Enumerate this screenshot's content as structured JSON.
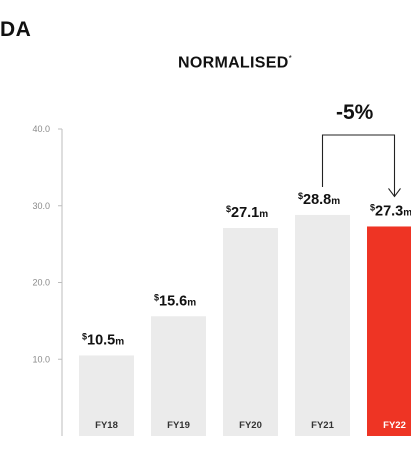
{
  "header": {
    "title_fragment": "DA",
    "subtitle": "NORMALISED",
    "subtitle_mark": "*"
  },
  "annotation": {
    "change_label": "-5%"
  },
  "colors": {
    "bar": "#ebebeb",
    "highlight": "#ee3424",
    "axis": "#bdbdbd",
    "tick_text": "#8a8a8a",
    "text": "#111111"
  },
  "chart_data": {
    "type": "bar",
    "title": "NORMALISED*",
    "xlabel": "",
    "ylabel": "",
    "ylim": [
      0,
      40
    ],
    "yticks": [
      "10.0",
      "20.0",
      "30.0",
      "40.0"
    ],
    "categories": [
      "FY18",
      "FY19",
      "FY20",
      "FY21",
      "FY22"
    ],
    "values": [
      10.5,
      15.6,
      27.1,
      28.8,
      27.3
    ],
    "value_labels": [
      {
        "prefix": "$",
        "number": "10.5",
        "suffix": "m"
      },
      {
        "prefix": "$",
        "number": "15.6",
        "suffix": "m"
      },
      {
        "prefix": "$",
        "number": "27.1",
        "suffix": "m"
      },
      {
        "prefix": "$",
        "number": "28.8",
        "suffix": "m"
      },
      {
        "prefix": "$",
        "number": "27.3",
        "suffix": "m"
      }
    ],
    "highlight": "FY22",
    "grid": false,
    "legend": "none"
  }
}
